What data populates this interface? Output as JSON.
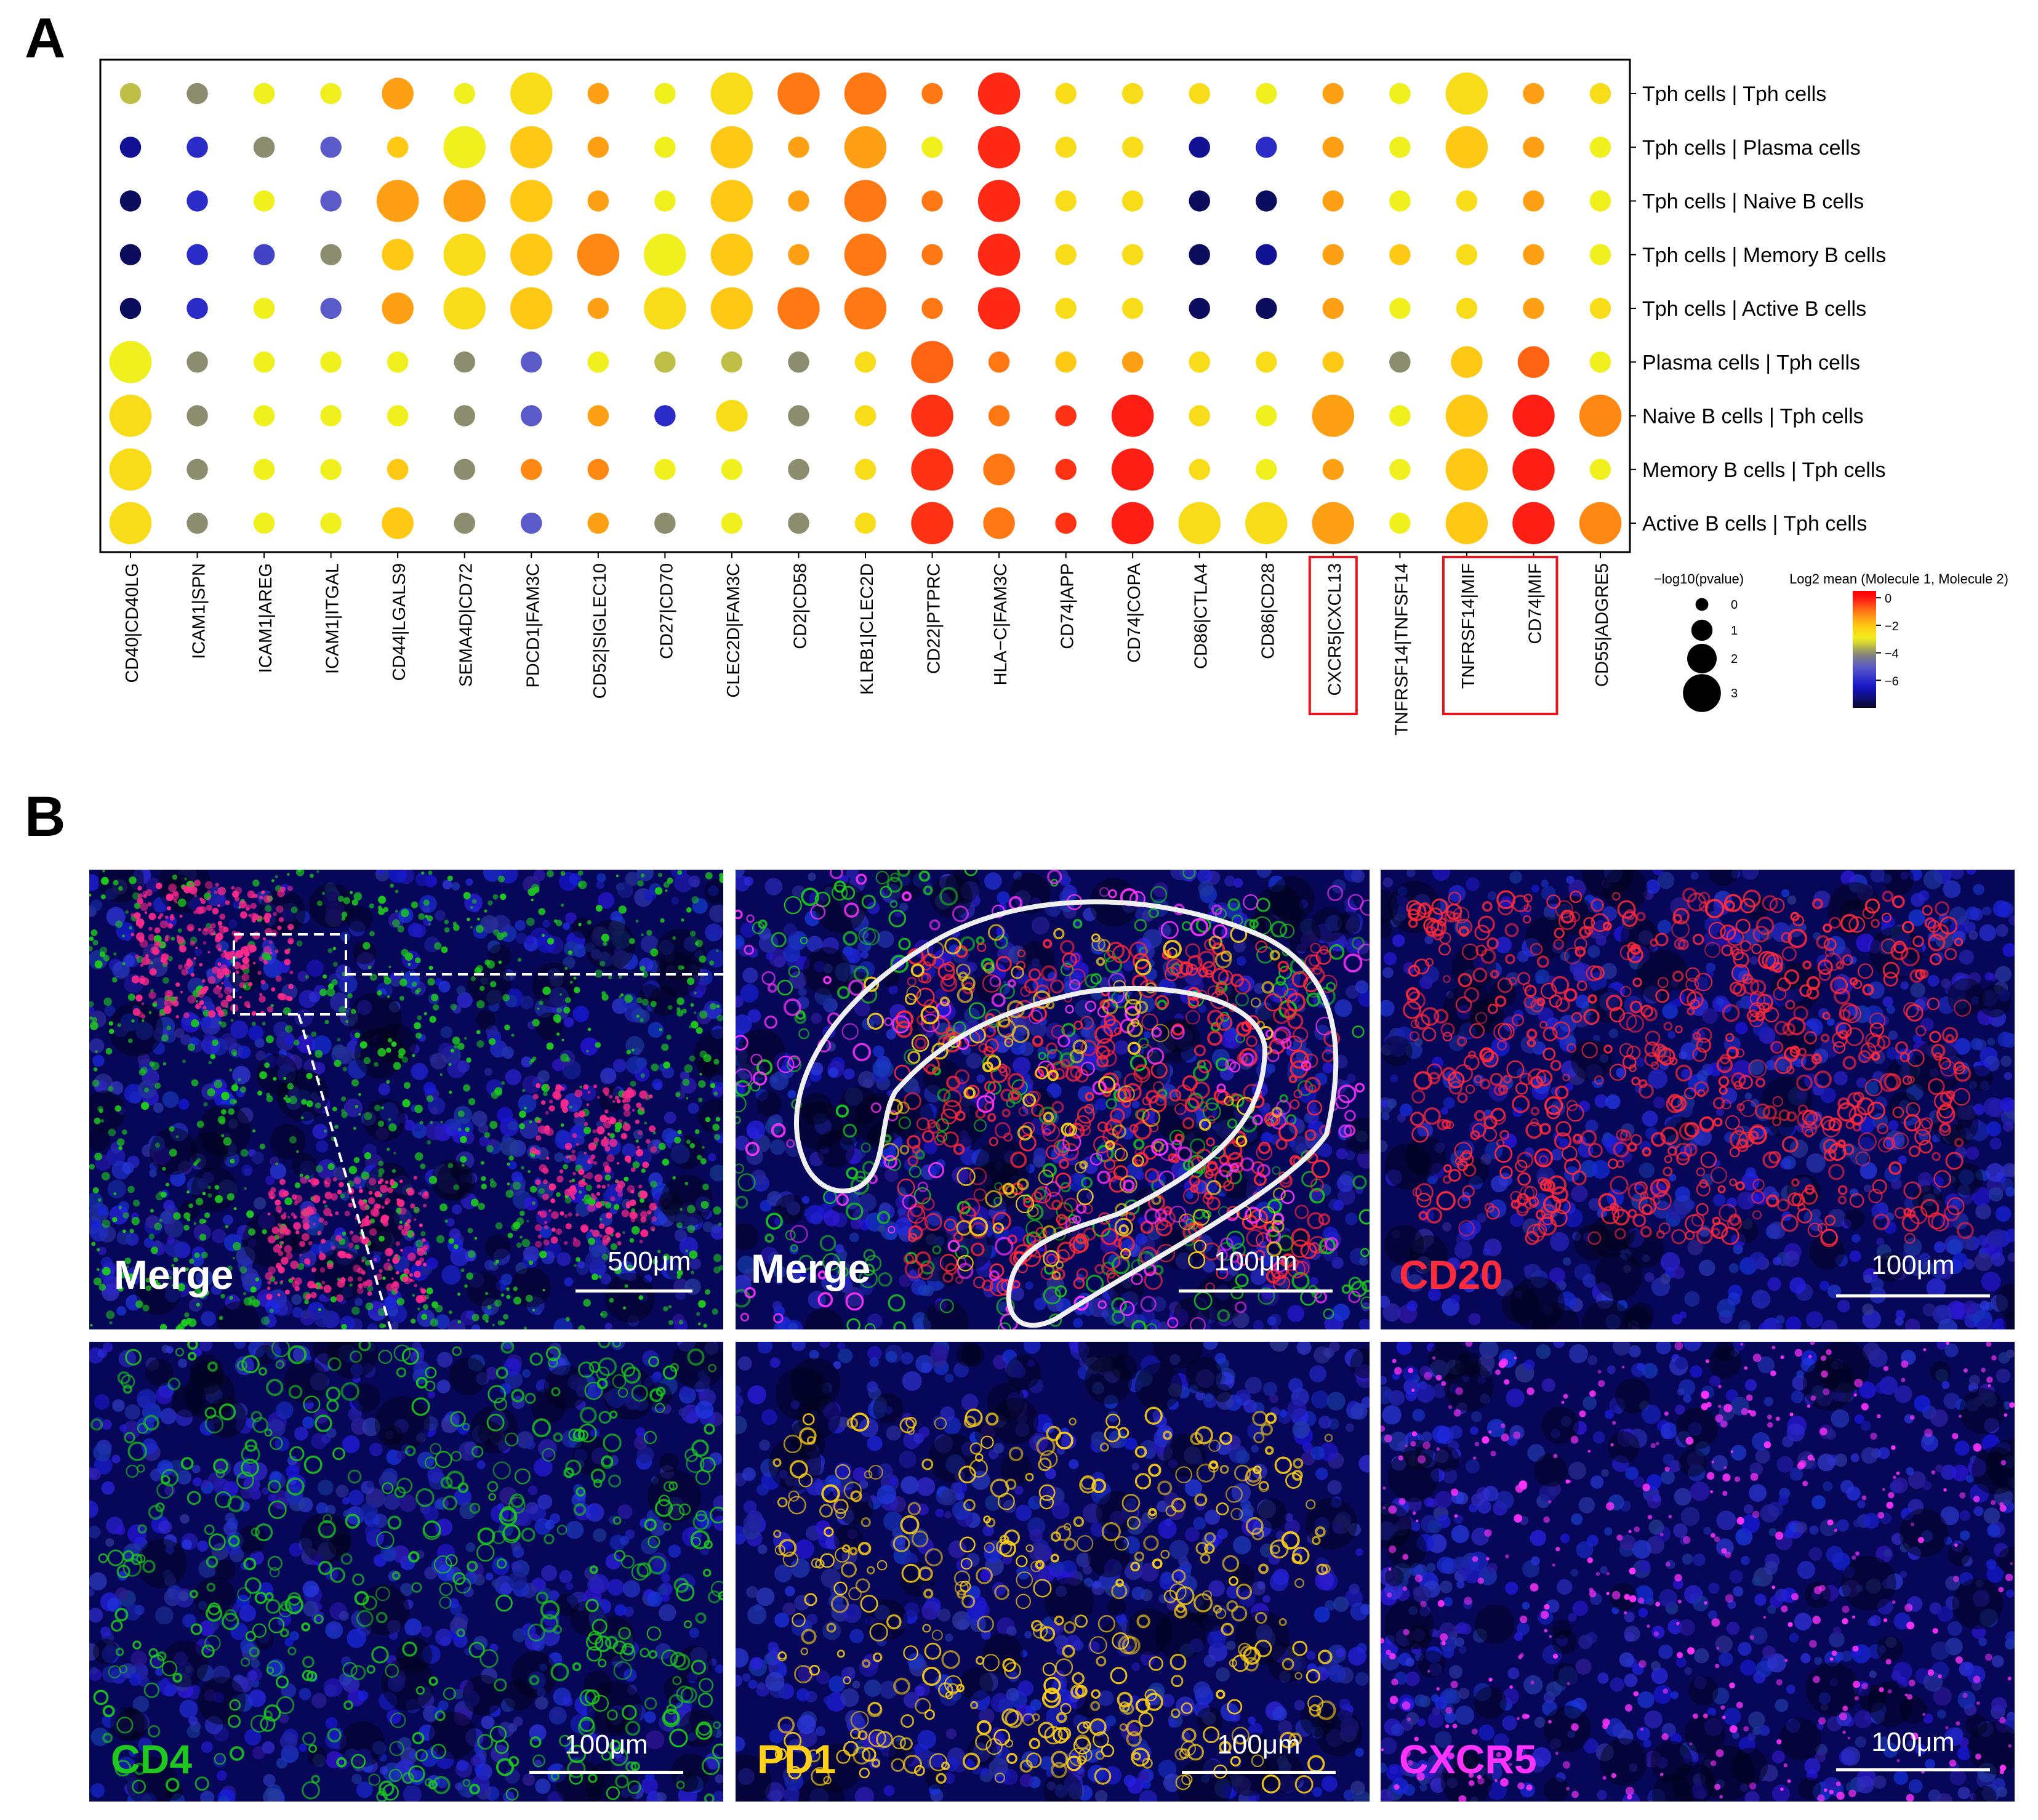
{
  "panels": {
    "a": "A",
    "b": "B"
  },
  "chart_data": {
    "type": "dot",
    "title": "",
    "rows": [
      "Tph cells | Tph cells",
      "Tph cells | Plasma cells",
      "Tph cells | Naive B cells",
      "Tph cells | Memory B cells",
      "Tph cells | Active B cells",
      "Plasma cells | Tph cells",
      "Naive B cells | Tph cells",
      "Memory B cells | Tph cells",
      "Active B cells | Tph cells"
    ],
    "columns": [
      "CD40|CD40LG",
      "ICAM1|SPN",
      "ICAM1|AREG",
      "ICAM1|ITGAL",
      "CD44|LGALS9",
      "SEMA4D|CD72",
      "PDCD1|FAM3C",
      "CD52|SIGLEC10",
      "CD27|CD70",
      "CLEC2D|FAM3C",
      "CD2|CD58",
      "KLRB1|CLEC2D",
      "CD22|PTPRC",
      "HLA−C|FAM3C",
      "CD74|APP",
      "CD74|COPA",
      "CD86|CTLA4",
      "CD86|CD28",
      "CXCR5|CXCL13",
      "TNFRSF14|TNFSF14",
      "TNFRSF14|MIF",
      "CD74|MIF",
      "CD55|ADGRE5"
    ],
    "highlighted_columns": [
      [
        "CXCR5|CXCL13"
      ],
      [
        "TNFRSF14|MIF",
        "CD74|MIF"
      ]
    ],
    "pvalue_matrix_neglog10": [
      [
        0.5,
        0.5,
        0.5,
        0.5,
        1.5,
        0.5,
        2.5,
        0.5,
        0.5,
        2.5,
        2.5,
        2.5,
        0.5,
        2.5,
        0.5,
        0.5,
        0.5,
        0.5,
        0.5,
        0.5,
        2.5,
        0.5,
        0.5
      ],
      [
        0.5,
        0.5,
        0.5,
        0.5,
        0.5,
        2.5,
        2.5,
        0.5,
        0.5,
        2.5,
        0.5,
        2.5,
        0.5,
        2.5,
        0.5,
        0.5,
        0.5,
        0.5,
        0.5,
        0.5,
        2.5,
        0.5,
        0.5
      ],
      [
        0.5,
        0.5,
        0.5,
        0.5,
        2.5,
        2.5,
        2.5,
        0.5,
        0.5,
        2.5,
        0.5,
        2.5,
        0.5,
        2.5,
        0.5,
        0.5,
        0.5,
        0.5,
        0.5,
        0.5,
        0.5,
        0.5,
        0.5
      ],
      [
        0.5,
        0.5,
        0.5,
        0.5,
        1.5,
        2.5,
        2.5,
        2.5,
        2.5,
        2.5,
        0.5,
        2.5,
        0.5,
        2.5,
        0.5,
        0.5,
        0.5,
        0.5,
        0.5,
        0.5,
        0.5,
        0.5,
        0.5
      ],
      [
        0.5,
        0.5,
        0.5,
        0.5,
        1.5,
        2.5,
        2.5,
        0.5,
        2.5,
        2.5,
        2.5,
        2.5,
        0.5,
        2.5,
        0.5,
        0.5,
        0.5,
        0.5,
        0.5,
        0.5,
        0.5,
        0.5,
        0.5
      ],
      [
        2.5,
        0.5,
        0.5,
        0.5,
        0.5,
        0.5,
        0.5,
        0.5,
        0.5,
        0.5,
        0.5,
        0.5,
        2.5,
        0.5,
        0.5,
        0.5,
        0.5,
        0.5,
        0.5,
        0.5,
        1.5,
        1.5,
        0.5
      ],
      [
        2.5,
        0.5,
        0.5,
        0.5,
        0.5,
        0.5,
        0.5,
        0.5,
        0.5,
        1.5,
        0.5,
        0.5,
        2.5,
        0.5,
        0.5,
        2.5,
        0.5,
        0.5,
        2.5,
        0.5,
        2.5,
        2.5,
        2.5
      ],
      [
        2.5,
        0.5,
        0.5,
        0.5,
        0.5,
        0.5,
        0.5,
        0.5,
        0.5,
        0.5,
        0.5,
        0.5,
        2.5,
        1.5,
        0.5,
        2.5,
        0.5,
        0.5,
        0.5,
        0.5,
        2.5,
        2.5,
        0.5
      ],
      [
        2.5,
        0.5,
        0.5,
        0.5,
        1.5,
        0.5,
        0.5,
        0.5,
        0.5,
        0.5,
        0.5,
        0.5,
        2.5,
        1.5,
        0.5,
        2.5,
        2.5,
        2.5,
        2.5,
        0.5,
        2.5,
        2.5,
        2.5
      ]
    ],
    "log2mean_matrix": [
      [
        -3.5,
        -4,
        -3,
        -3,
        -1.5,
        -3,
        -2.5,
        -1.5,
        -3,
        -2.5,
        -1,
        -1,
        -1,
        -0.2,
        -2.5,
        -2.5,
        -2.5,
        -3,
        -1.5,
        -3,
        -2.5,
        -1.5,
        -2.5
      ],
      [
        -7,
        -6,
        -4,
        -5,
        -2,
        -3,
        -2,
        -1.5,
        -3,
        -2,
        -1.5,
        -1.5,
        -3,
        -0.2,
        -2.5,
        -2.5,
        -7,
        -6,
        -1.5,
        -3,
        -2,
        -1.5,
        -3
      ],
      [
        -7.5,
        -6,
        -3,
        -5,
        -1.5,
        -1.5,
        -2,
        -1.5,
        -3,
        -2,
        -1.5,
        -1,
        -1,
        -0.2,
        -2.5,
        -2.5,
        -7.5,
        -7.5,
        -1.5,
        -3,
        -2.5,
        -1.5,
        -3
      ],
      [
        -7.5,
        -6,
        -5.5,
        -4,
        -2,
        -2.5,
        -2,
        -1.2,
        -3,
        -2,
        -1.5,
        -1,
        -1,
        -0.2,
        -2.5,
        -2.5,
        -7.5,
        -7,
        -1.5,
        -2,
        -2.5,
        -1.5,
        -3
      ],
      [
        -7.5,
        -6,
        -3,
        -5,
        -1.5,
        -2.5,
        -2,
        -1.5,
        -2.5,
        -2,
        -1,
        -1,
        -1,
        -0.2,
        -2.5,
        -2.5,
        -7.5,
        -7.5,
        -1.5,
        -3,
        -2.5,
        -1.5,
        -2.5
      ],
      [
        -3,
        -4,
        -3,
        -3,
        -3,
        -4,
        -5,
        -3,
        -3.5,
        -3.5,
        -4,
        -2.5,
        -0.8,
        -1,
        -2,
        -1.5,
        -2.5,
        -2.5,
        -2,
        -4,
        -2,
        -0.8,
        -3
      ],
      [
        -2.5,
        -4,
        -3,
        -3,
        -3,
        -4,
        -5,
        -1.5,
        -6,
        -2.5,
        -4,
        -2.5,
        -0.3,
        -1,
        -0.3,
        -0.1,
        -2.5,
        -3,
        -1.5,
        -3,
        -2,
        -0.1,
        -1.2
      ],
      [
        -2.5,
        -4,
        -3,
        -3,
        -2,
        -4,
        -1.2,
        -1.2,
        -3,
        -3,
        -4,
        -2.5,
        -0.3,
        -1,
        -0.3,
        -0.1,
        -2.5,
        -3,
        -1.5,
        -3,
        -2,
        -0.1,
        -3
      ],
      [
        -2.5,
        -4,
        -3,
        -3,
        -2,
        -4,
        -5,
        -1.5,
        -4,
        -3,
        -4,
        -2.5,
        -0.3,
        -1,
        -0.3,
        -0.1,
        -2.5,
        -2.5,
        -1.5,
        -3,
        -2,
        -0.1,
        -1.2
      ]
    ],
    "size_legend": {
      "title": "−log10(pvalue)",
      "levels": [
        "0",
        "1",
        "2",
        "3"
      ],
      "values": [
        0,
        1,
        2,
        3
      ]
    },
    "color_legend": {
      "title": "Log2 mean (Molecule 1, Molecule 2)",
      "ticks": [
        "0",
        "−2",
        "−4",
        "−6"
      ],
      "tick_values": [
        0,
        -2,
        -4,
        -6
      ],
      "range": [
        -8,
        0.5
      ]
    }
  },
  "micrographs": {
    "merge_overview": {
      "label": "Merge",
      "scale": "500μm"
    },
    "merge_zoom": {
      "label": "Merge",
      "scale": "100μm"
    },
    "cd20": {
      "label": "CD20",
      "scale": "100μm"
    },
    "cd4": {
      "label": "CD4",
      "scale": "100μm"
    },
    "pd1": {
      "label": "PD1",
      "scale": "100μm"
    },
    "cxcr5": {
      "label": "CXCR5",
      "scale": "100μm"
    }
  },
  "colors": {
    "cd20": "#ff2a3c",
    "cd4": "#1ec81e",
    "pd1": "#ffd11a",
    "cxcr5": "#ff33ff",
    "highlight_box": "#e8141c",
    "tissue_background": "#0a0a6e"
  }
}
